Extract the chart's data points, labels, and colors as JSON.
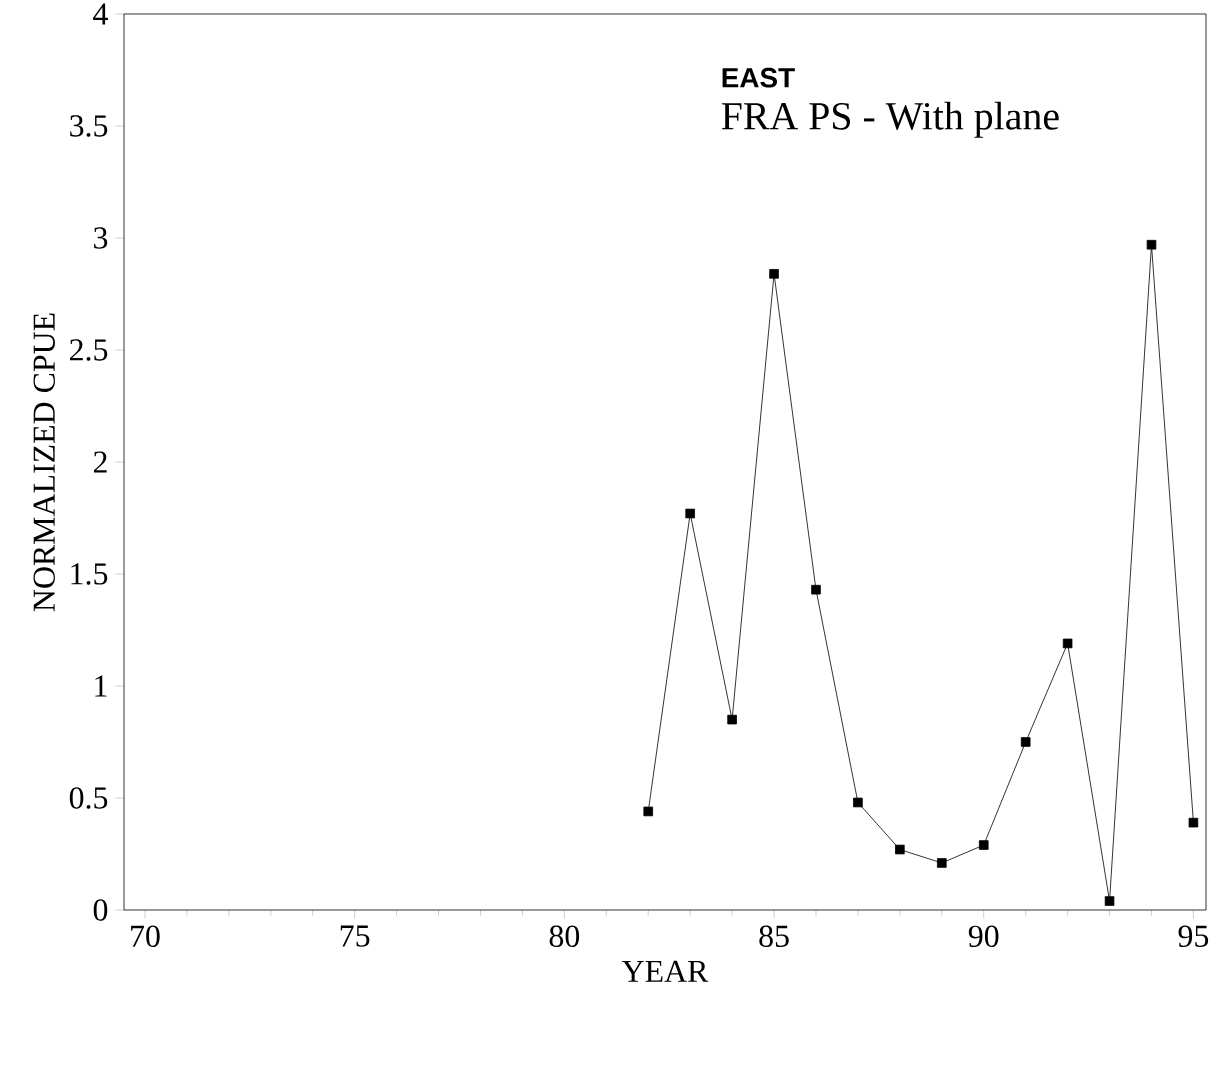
{
  "chart_data": {
    "type": "line",
    "title": "EAST",
    "subtitle": "FRA PS - With plane",
    "xlabel": "YEAR",
    "ylabel": "NORMALIZED CPUE",
    "x": [
      82,
      83,
      84,
      85,
      86,
      87,
      88,
      89,
      90,
      91,
      92,
      93,
      94,
      95
    ],
    "values": [
      0.44,
      1.77,
      0.85,
      2.84,
      1.43,
      0.48,
      0.27,
      0.21,
      0.29,
      0.75,
      1.19,
      0.04,
      2.97,
      0.39
    ],
    "color": "#000000",
    "marker": "square",
    "line_style": "solid",
    "xlim": [
      69.5,
      95.3
    ],
    "xticks": [
      70,
      75,
      80,
      85,
      90,
      95
    ],
    "ylim": [
      0,
      4
    ],
    "yticks": [
      0,
      0.5,
      1,
      1.5,
      2,
      2.5,
      3,
      3.5,
      4
    ],
    "grid": false
  }
}
